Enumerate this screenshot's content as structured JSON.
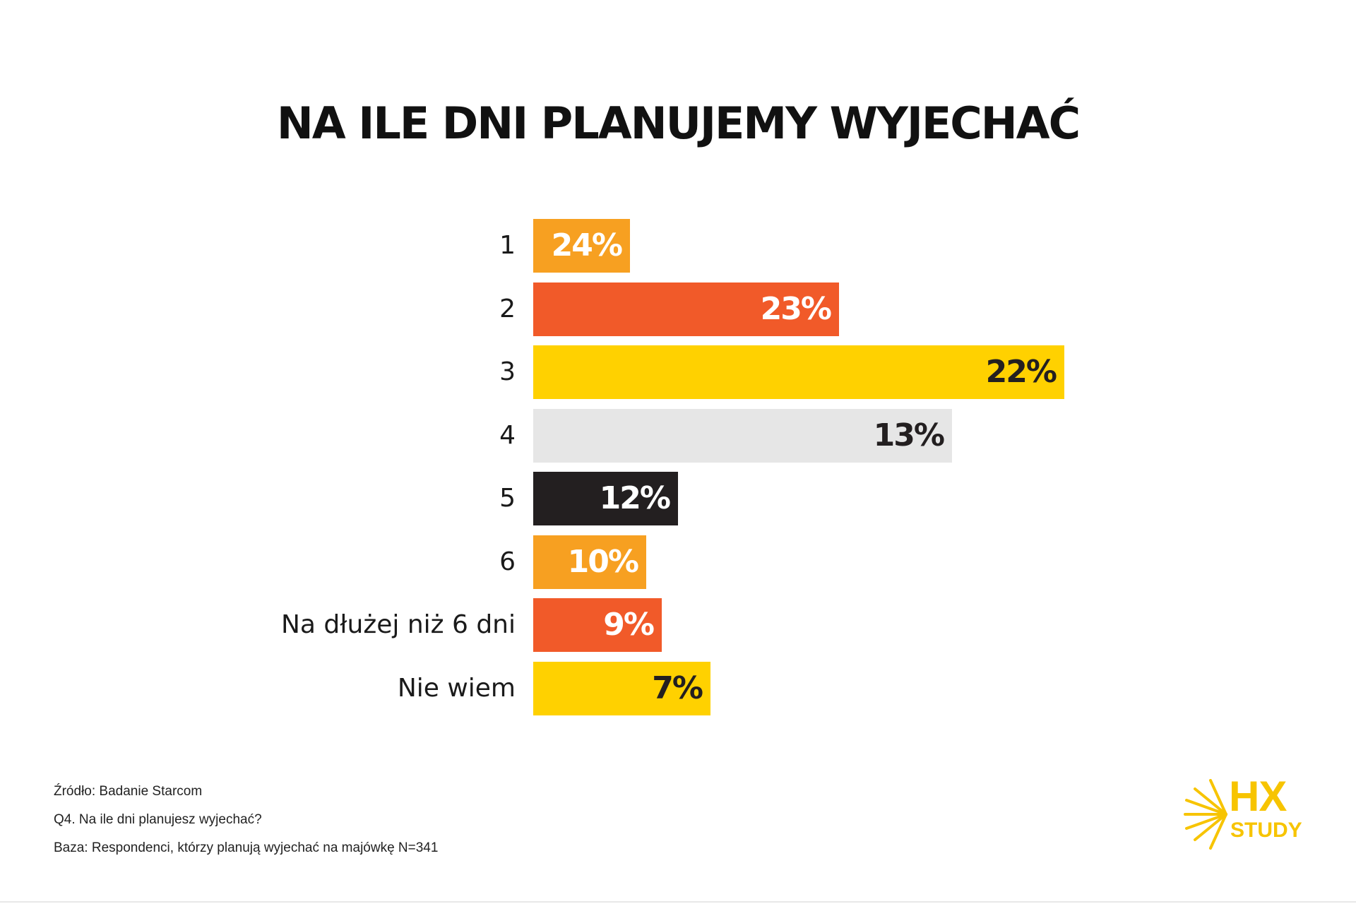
{
  "title": "NA ILE DNI PLANUJEMY WYJECHAĆ",
  "chart_data": {
    "type": "bar",
    "orientation": "horizontal",
    "title": "NA ILE DNI PLANUJEMY WYJECHAĆ",
    "categories": [
      "1",
      "2",
      "3",
      "4",
      "5",
      "6",
      "Na dłużej niż 6 dni",
      "Nie wiem"
    ],
    "values": [
      24,
      23,
      22,
      13,
      12,
      10,
      9,
      7
    ],
    "value_labels": [
      "24%",
      "23%",
      "22%",
      "13%",
      "12%",
      "10%",
      "9%",
      "7%"
    ],
    "display_scale": [
      6,
      19,
      33,
      26,
      9,
      7,
      8,
      11
    ],
    "bar_colors": [
      "#F7A021",
      "#F15A29",
      "#FFD100",
      "#E6E6E6",
      "#231F20",
      "#F7A021",
      "#F15A29",
      "#FFD100"
    ],
    "label_colors": [
      "#ffffff",
      "#ffffff",
      "#231F20",
      "#231F20",
      "#ffffff",
      "#ffffff",
      "#ffffff",
      "#231F20"
    ],
    "xlabel": "",
    "ylabel": "",
    "unit": "%"
  },
  "footer": {
    "source": "Źródło: Badanie Starcom",
    "question": "Q4. Na ile dni planujesz wyjechać?",
    "base": "Baza: Respondenci, którzy planują wyjechać na majówkę N=341"
  },
  "logo": {
    "line1": "HX",
    "line2": "STUDY",
    "color": "#F7C400"
  }
}
